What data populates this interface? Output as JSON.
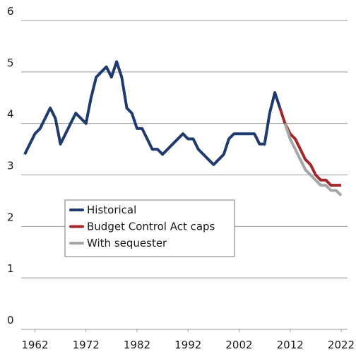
{
  "chart_data": {
    "type": "line",
    "x": [
      1960,
      1961,
      1962,
      1963,
      1964,
      1965,
      1966,
      1967,
      1968,
      1969,
      1970,
      1971,
      1972,
      1973,
      1974,
      1975,
      1976,
      1977,
      1978,
      1979,
      1980,
      1981,
      1982,
      1983,
      1984,
      1985,
      1986,
      1987,
      1988,
      1989,
      1990,
      1991,
      1992,
      1993,
      1994,
      1995,
      1996,
      1997,
      1998,
      1999,
      2000,
      2001,
      2002,
      2003,
      2004,
      2005,
      2006,
      2007,
      2008,
      2009,
      2010,
      2011,
      2012,
      2013,
      2014,
      2015,
      2016,
      2017,
      2018,
      2019,
      2020,
      2021,
      2022
    ],
    "series": [
      {
        "name": "Historical",
        "color": "#1f3a6e",
        "values": [
          3.4,
          3.6,
          3.8,
          3.9,
          4.1,
          4.3,
          4.1,
          3.6,
          3.8,
          4.0,
          4.2,
          4.1,
          4.0,
          4.5,
          4.9,
          5.0,
          5.1,
          4.9,
          5.2,
          4.9,
          4.3,
          4.2,
          3.9,
          3.9,
          3.7,
          3.5,
          3.5,
          3.4,
          3.5,
          3.6,
          3.7,
          3.8,
          3.7,
          3.7,
          3.5,
          3.4,
          3.3,
          3.2,
          3.3,
          3.4,
          3.7,
          3.8,
          3.8,
          3.8,
          3.8,
          3.8,
          3.6,
          3.6,
          4.2,
          4.6,
          4.3,
          null,
          null,
          null,
          null,
          null,
          null,
          null,
          null,
          null,
          null,
          null,
          null
        ]
      },
      {
        "name": "Budget Control Act caps",
        "color": "#a3262a",
        "values": [
          null,
          null,
          null,
          null,
          null,
          null,
          null,
          null,
          null,
          null,
          null,
          null,
          null,
          null,
          null,
          null,
          null,
          null,
          null,
          null,
          null,
          null,
          null,
          null,
          null,
          null,
          null,
          null,
          null,
          null,
          null,
          null,
          null,
          null,
          null,
          null,
          null,
          null,
          null,
          null,
          null,
          null,
          null,
          null,
          null,
          null,
          null,
          null,
          null,
          null,
          4.3,
          4.0,
          3.8,
          3.7,
          3.5,
          3.3,
          3.2,
          3.0,
          2.9,
          2.9,
          2.8,
          2.8,
          2.8
        ]
      },
      {
        "name": "With sequester",
        "color": "#a6a6a6",
        "values": [
          null,
          null,
          null,
          null,
          null,
          null,
          null,
          null,
          null,
          null,
          null,
          null,
          null,
          null,
          null,
          null,
          null,
          null,
          null,
          null,
          null,
          null,
          null,
          null,
          null,
          null,
          null,
          null,
          null,
          null,
          null,
          null,
          null,
          null,
          null,
          null,
          null,
          null,
          null,
          null,
          null,
          null,
          null,
          null,
          null,
          null,
          null,
          null,
          null,
          null,
          null,
          4.0,
          3.7,
          3.5,
          3.3,
          3.1,
          3.0,
          2.9,
          2.8,
          2.8,
          2.7,
          2.7,
          2.6
        ]
      }
    ],
    "xlim": [
      1960,
      2022
    ],
    "xticks": [
      1962,
      1972,
      1982,
      1992,
      2002,
      2012,
      2022
    ],
    "ylim": [
      0,
      6
    ],
    "yticks": [
      0,
      1,
      2,
      3,
      4,
      5,
      6
    ],
    "grid": true
  }
}
